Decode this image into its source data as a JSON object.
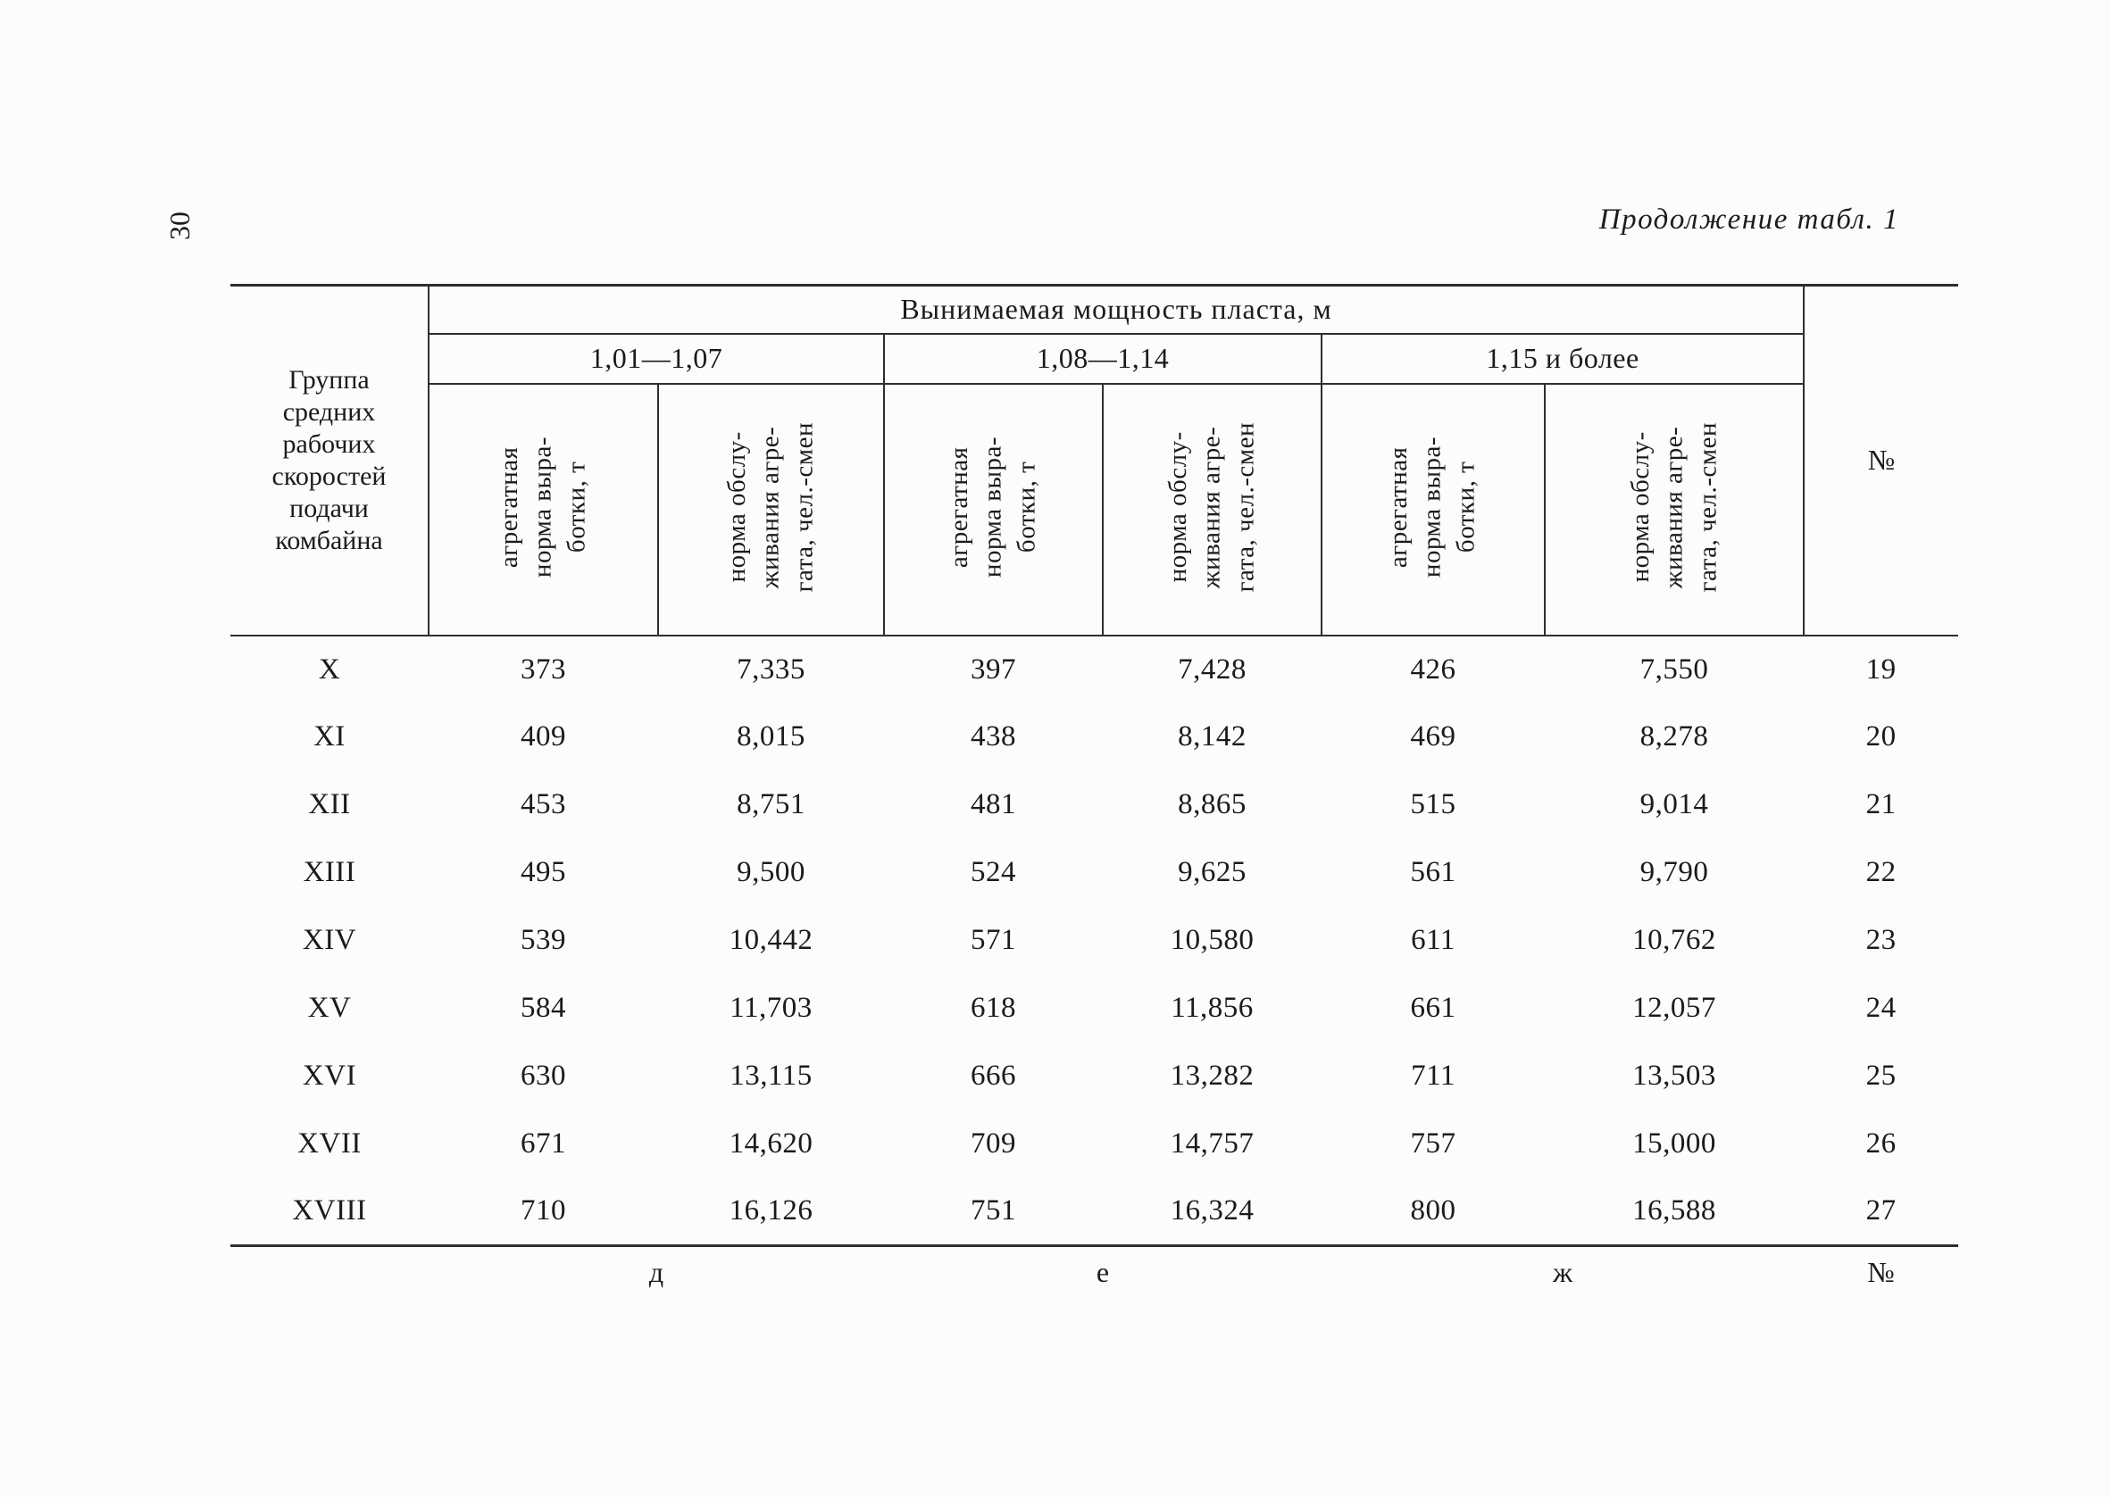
{
  "page": {
    "number": "30",
    "caption": "Продолжение табл. 1"
  },
  "colors": {
    "paper": "#fcfcfa",
    "ink": "#1b1b1b",
    "rule": "#2e2e2e"
  },
  "table": {
    "corner_header": "Группа\nсредних\nрабочих\nскоростей\nподачи\nкомбайна",
    "span_header": "Вынимаемая мощность пласта, м",
    "group_ranges": [
      "1,01—1,07",
      "1,08—1,14",
      "1,15 и более"
    ],
    "sub_headers": [
      "агрегатная\nнорма выра-\nботки, т",
      "норма обслу-\nживания агре-\nгата, чел.-смен",
      "агрегатная\nнорма выра-\nботки, т",
      "норма обслу-\nживания агре-\nгата, чел.-смен",
      "агрегатная\nнорма выра-\nботки, т",
      "норма обслу-\nживания агре-\nгата, чел.-смен"
    ],
    "num_header": "№",
    "rows": [
      {
        "group": "X",
        "values": [
          "373",
          "7,335",
          "397",
          "7,428",
          "426",
          "7,550"
        ],
        "num": "19"
      },
      {
        "group": "XI",
        "values": [
          "409",
          "8,015",
          "438",
          "8,142",
          "469",
          "8,278"
        ],
        "num": "20"
      },
      {
        "group": "XII",
        "values": [
          "453",
          "8,751",
          "481",
          "8,865",
          "515",
          "9,014"
        ],
        "num": "21"
      },
      {
        "group": "XIII",
        "values": [
          "495",
          "9,500",
          "524",
          "9,625",
          "561",
          "9,790"
        ],
        "num": "22"
      },
      {
        "group": "XIV",
        "values": [
          "539",
          "10,442",
          "571",
          "10,580",
          "611",
          "10,762"
        ],
        "num": "23"
      },
      {
        "group": "XV",
        "values": [
          "584",
          "11,703",
          "618",
          "11,856",
          "661",
          "12,057"
        ],
        "num": "24"
      },
      {
        "group": "XVI",
        "values": [
          "630",
          "13,115",
          "666",
          "13,282",
          "711",
          "13,503"
        ],
        "num": "25"
      },
      {
        "group": "XVII",
        "values": [
          "671",
          "14,620",
          "709",
          "14,757",
          "757",
          "15,000"
        ],
        "num": "26"
      },
      {
        "group": "XVIII",
        "values": [
          "710",
          "16,126",
          "751",
          "16,324",
          "800",
          "16,588"
        ],
        "num": "27"
      }
    ],
    "footnotes": [
      "д",
      "е",
      "ж",
      "№"
    ]
  }
}
